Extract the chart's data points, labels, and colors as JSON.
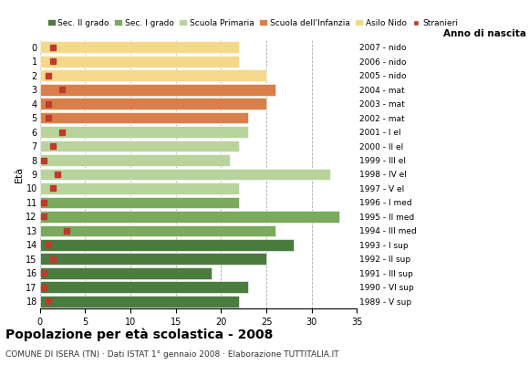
{
  "ages": [
    18,
    17,
    16,
    15,
    14,
    13,
    12,
    11,
    10,
    9,
    8,
    7,
    6,
    5,
    4,
    3,
    2,
    1,
    0
  ],
  "years": [
    "1989 - V sup",
    "1990 - VI sup",
    "1991 - III sup",
    "1992 - II sup",
    "1993 - I sup",
    "1994 - III med",
    "1995 - II med",
    "1996 - I med",
    "1997 - V el",
    "1998 - IV el",
    "1999 - III el",
    "2000 - II el",
    "2001 - I el",
    "2002 - mat",
    "2003 - mat",
    "2004 - mat",
    "2005 - nido",
    "2006 - nido",
    "2007 - nido"
  ],
  "values": [
    22,
    23,
    19,
    25,
    28,
    26,
    33,
    22,
    22,
    32,
    21,
    22,
    23,
    23,
    25,
    26,
    25,
    22,
    22
  ],
  "stranieri": [
    1,
    0.5,
    0.5,
    1.5,
    1,
    3,
    0.5,
    0.5,
    1.5,
    2,
    0.5,
    1.5,
    2.5,
    1,
    1,
    2.5,
    1,
    1.5,
    1.5
  ],
  "bar_colors": [
    "#4a7c3f",
    "#4a7c3f",
    "#4a7c3f",
    "#4a7c3f",
    "#4a7c3f",
    "#7aaa5c",
    "#7aaa5c",
    "#7aaa5c",
    "#b8d49c",
    "#b8d49c",
    "#b8d49c",
    "#b8d49c",
    "#b8d49c",
    "#d9804a",
    "#d9804a",
    "#d9804a",
    "#f5d98b",
    "#f5d98b",
    "#f5d98b"
  ],
  "stranieri_color": "#c0392b",
  "legend_labels": [
    "Sec. II grado",
    "Sec. I grado",
    "Scuola Primaria",
    "Scuola dell'Infanzia",
    "Asilo Nido",
    "Stranieri"
  ],
  "legend_colors": [
    "#4a7c3f",
    "#7aaa5c",
    "#b8d49c",
    "#d9804a",
    "#f5d98b",
    "#c0392b"
  ],
  "title": "Popolazione per età scolastica - 2008",
  "subtitle": "COMUNE DI ISERA (TN) · Dati ISTAT 1° gennaio 2008 · Elaborazione TUTTITALIA.IT",
  "xlabel_age": "Età",
  "xlabel_year": "Anno di nascita",
  "xlim": [
    0,
    35
  ],
  "xticks": [
    0,
    5,
    10,
    15,
    20,
    25,
    30,
    35
  ],
  "grid_color": "#aaaaaa",
  "bg_color": "#ffffff"
}
